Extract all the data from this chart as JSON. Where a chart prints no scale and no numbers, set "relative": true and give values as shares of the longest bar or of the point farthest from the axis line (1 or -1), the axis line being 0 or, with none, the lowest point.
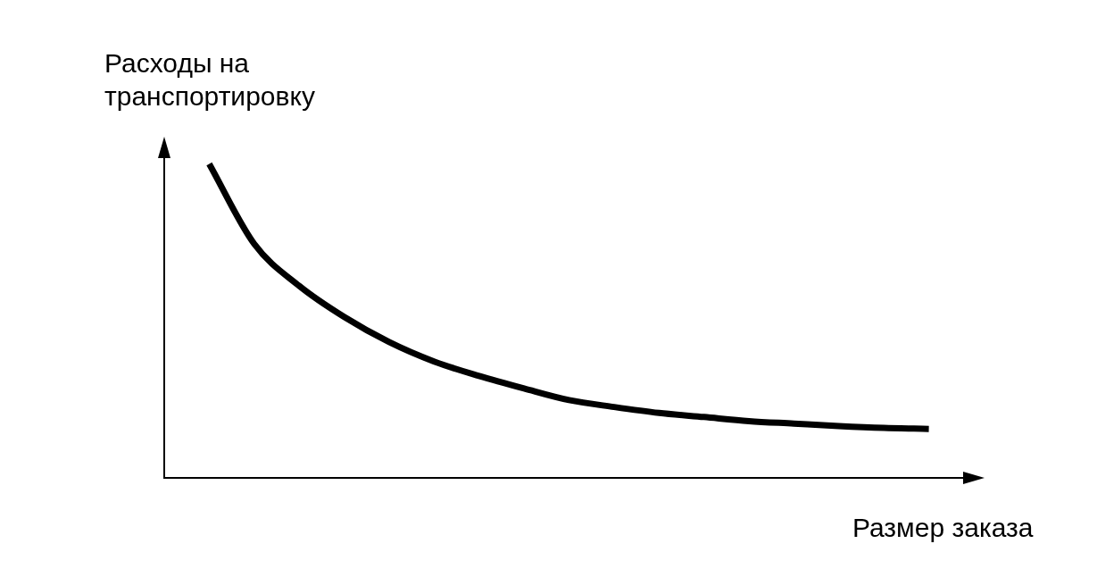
{
  "chart_data": {
    "type": "line",
    "relative": true,
    "xlabel": "Размер заказа",
    "ylabel": "Расходы на транспортировку",
    "categories": [
      null,
      null,
      null,
      null,
      null,
      null,
      null,
      null,
      null,
      null,
      null,
      null,
      null,
      null,
      null,
      null,
      null,
      null,
      null
    ],
    "series": [
      {
        "color": "#000000",
        "values": [
          null,
          1,
          0.745,
          0.611,
          0.512,
          0.432,
          0.37,
          0.324,
          0.284,
          0.247,
          0.225,
          0.206,
          0.193,
          0.18,
          0.172,
          0.164,
          0.158,
          0.155,
          null
        ]
      }
    ],
    "grid": false,
    "legend": false,
    "marker": "none",
    "line_style": "solid"
  }
}
